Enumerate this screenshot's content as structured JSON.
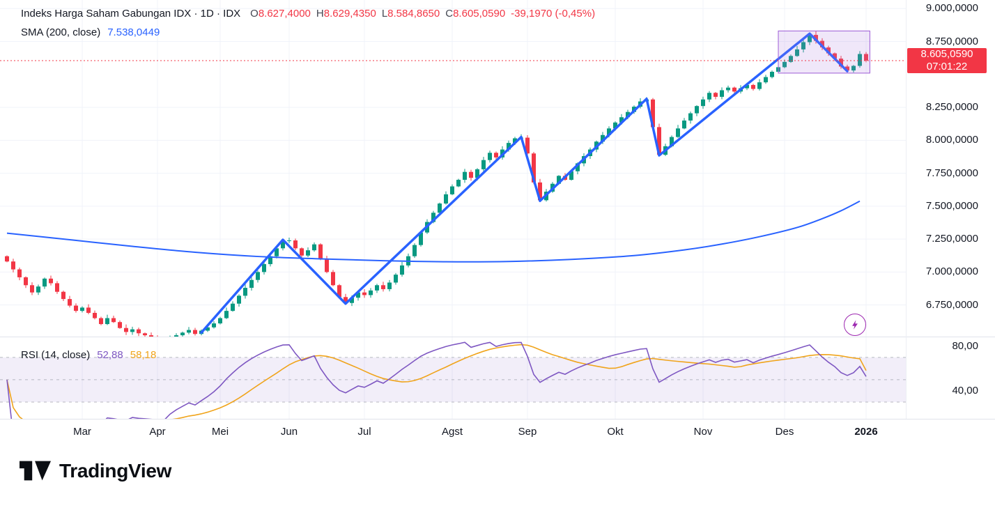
{
  "header": {
    "symbol_title": "Indeks Harga Saham Gabungan IDX · 1D · IDX",
    "ohlc": {
      "o_label": "O",
      "o_value": "8.627,4000",
      "h_label": "H",
      "h_value": "8.629,4350",
      "l_label": "L",
      "l_value": "8.584,8650",
      "c_label": "C",
      "c_value": "8.605,0590",
      "change": "-39,1970 (-0,45%)"
    },
    "sma": {
      "label": "SMA (200, close)",
      "value": "7.538,0449"
    }
  },
  "rsi_legend": {
    "label": "RSI (14, close)",
    "rsi_value": "52,88",
    "ma_value": "58,18"
  },
  "last_price_badge": {
    "price_text": "8.605,0590",
    "time_text": "07:01:22",
    "price": 8605.059
  },
  "branding": {
    "name": "TradingView"
  },
  "colors": {
    "up": "#089981",
    "down": "#F23645",
    "sma": "#2962FF",
    "trend": "#2962FF",
    "rsi": "#7E57C2",
    "rsi_ma": "#F0A41B",
    "band_fill": "rgba(126,87,194,0.10)",
    "band_line": "#9B9EA8",
    "box_fill": "rgba(170,120,220,0.18)",
    "box_stroke": "#9C5BD6",
    "grid": "#F0F3FA",
    "accent_purple": "#9C27B0"
  },
  "chart_data": {
    "type": "candlestick",
    "title": "Indeks Harga Saham Gabungan IDX",
    "interval": "1D",
    "exchange": "IDX",
    "today_ohlc": {
      "open": 8627.4,
      "high": 8629.435,
      "low": 8584.865,
      "close": 8605.059,
      "change": -39.197,
      "change_pct": -0.45
    },
    "visible_price_range": [
      6510,
      9065
    ],
    "closes": [
      7080,
      7020,
      6960,
      6900,
      6845,
      6890,
      6950,
      6915,
      6850,
      6795,
      6745,
      6705,
      6730,
      6690,
      6650,
      6605,
      6650,
      6620,
      6575,
      6545,
      6565,
      6535,
      6520,
      6505,
      6480,
      6460,
      6495,
      6520,
      6540,
      6560,
      6530,
      6555,
      6580,
      6610,
      6650,
      6705,
      6760,
      6820,
      6880,
      6940,
      7000,
      7060,
      7120,
      7180,
      7235,
      7240,
      7180,
      7125,
      7165,
      7210,
      7100,
      7000,
      6900,
      6810,
      6765,
      6805,
      6845,
      6825,
      6860,
      6900,
      6870,
      6920,
      6980,
      7050,
      7120,
      7205,
      7300,
      7380,
      7450,
      7520,
      7590,
      7650,
      7700,
      7760,
      7715,
      7780,
      7850,
      7905,
      7870,
      7930,
      7980,
      8015,
      8020,
      7900,
      7680,
      7545,
      7610,
      7670,
      7730,
      7700,
      7765,
      7825,
      7880,
      7930,
      7990,
      8040,
      8090,
      8135,
      8175,
      8215,
      8255,
      8295,
      8310,
      8100,
      7890,
      7955,
      8025,
      8090,
      8150,
      8205,
      8260,
      8310,
      8360,
      8330,
      8380,
      8400,
      8370,
      8395,
      8420,
      8390,
      8440,
      8480,
      8520,
      8555,
      8595,
      8640,
      8690,
      8745,
      8800,
      8755,
      8705,
      8660,
      8620,
      8560,
      8530,
      8565,
      8655,
      8605
    ],
    "overlays": {
      "sma200": {
        "label": "SMA (200, close)",
        "period": 200,
        "current": 7538.0449,
        "points": [
          [
            0,
            7295
          ],
          [
            10,
            7245
          ],
          [
            20,
            7195
          ],
          [
            30,
            7150
          ],
          [
            40,
            7118
          ],
          [
            50,
            7100
          ],
          [
            60,
            7086
          ],
          [
            70,
            7078
          ],
          [
            80,
            7080
          ],
          [
            90,
            7096
          ],
          [
            100,
            7125
          ],
          [
            108,
            7168
          ],
          [
            114,
            7212
          ],
          [
            120,
            7268
          ],
          [
            126,
            7338
          ],
          [
            130,
            7405
          ],
          [
            133,
            7465
          ],
          [
            136,
            7538
          ]
        ]
      },
      "trend_line": {
        "points": [
          [
            31,
            6540
          ],
          [
            44,
            7245
          ],
          [
            54,
            6760
          ],
          [
            82,
            8025
          ],
          [
            85,
            7540
          ],
          [
            102,
            8315
          ],
          [
            104,
            7885
          ],
          [
            128,
            8810
          ],
          [
            134,
            8525
          ]
        ]
      },
      "highlight_box": {
        "i_start": 123,
        "i_end": 137.6,
        "price_top": 8830,
        "price_bottom": 8510
      }
    },
    "rsi": {
      "period": 14,
      "current": 52.88,
      "ma_period": 14,
      "ma_current": 58.18,
      "bands": {
        "upper": 70,
        "middle": 50,
        "lower": 30
      },
      "visible_range": [
        15,
        88
      ],
      "axis_labels": [
        {
          "value": 80,
          "text": "80,00"
        },
        {
          "value": 40,
          "text": "40,00"
        }
      ]
    },
    "price_axis_labels": [
      {
        "value": 9000,
        "text": "9.000,0000"
      },
      {
        "value": 8750,
        "text": "8.750,0000"
      },
      {
        "value": 8250,
        "text": "8.250,0000"
      },
      {
        "value": 8000,
        "text": "8.000,0000"
      },
      {
        "value": 7750,
        "text": "7.750,0000"
      },
      {
        "value": 7500,
        "text": "7.500,0000"
      },
      {
        "value": 7250,
        "text": "7.250,0000"
      },
      {
        "value": 7000,
        "text": "7.000,0000"
      },
      {
        "value": 6750,
        "text": "6.750,0000"
      }
    ],
    "time_axis_labels": [
      {
        "label": "Mar",
        "i": 12
      },
      {
        "label": "Apr",
        "i": 24
      },
      {
        "label": "Mei",
        "i": 34
      },
      {
        "label": "Jun",
        "i": 45
      },
      {
        "label": "Jul",
        "i": 57
      },
      {
        "label": "Agst",
        "i": 71
      },
      {
        "label": "Sep",
        "i": 83
      },
      {
        "label": "Okt",
        "i": 97
      },
      {
        "label": "Nov",
        "i": 111
      },
      {
        "label": "Des",
        "i": 124
      },
      {
        "label": "2026",
        "i": 137,
        "bold": true
      }
    ]
  }
}
